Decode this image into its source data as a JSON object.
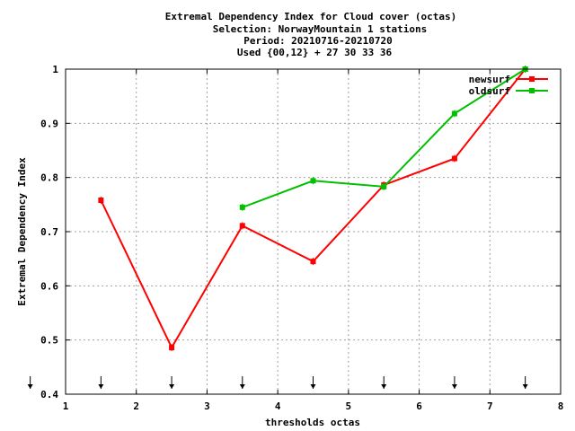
{
  "chart_data": {
    "type": "line",
    "title_lines": [
      "Extremal Dependency Index  for Cloud cover (octas)",
      "Selection: NorwayMountain      1 stations",
      "Period: 20210716-20210720",
      "Used {00,12} + 27 30 33 36"
    ],
    "xlabel": "thresholds octas",
    "ylabel": "Extremal Dependency Index",
    "xlim": [
      1,
      8
    ],
    "ylim": [
      0.4,
      1.0
    ],
    "x_ticks": [
      1,
      2,
      3,
      4,
      5,
      6,
      7,
      8
    ],
    "x_tick_labels": [
      "1",
      "2",
      "3",
      "4",
      "5",
      "6",
      "7",
      "8"
    ],
    "y_ticks": [
      0.4,
      0.5,
      0.6,
      0.7,
      0.8,
      0.9,
      1.0
    ],
    "y_tick_labels": [
      "0.4",
      "0.5",
      "0.6",
      "0.7",
      "0.8",
      "0.9",
      "1"
    ],
    "grid": true,
    "legend_position": "top-right",
    "threshold_arrows_x": [
      0.5,
      1.5,
      2.5,
      3.5,
      4.5,
      5.5,
      6.5,
      7.5
    ],
    "series": [
      {
        "name": "newsurf",
        "color": "#ff0000",
        "x": [
          1.5,
          2.5,
          3.5,
          4.5,
          5.5,
          6.5,
          7.5
        ],
        "y": [
          0.758,
          0.486,
          0.711,
          0.645,
          0.786,
          0.835,
          1.0
        ]
      },
      {
        "name": "oldsurf",
        "color": "#00c000",
        "x": [
          3.5,
          4.5,
          5.5,
          6.5,
          7.5
        ],
        "y": [
          0.745,
          0.794,
          0.783,
          0.918,
          1.0
        ]
      }
    ]
  }
}
